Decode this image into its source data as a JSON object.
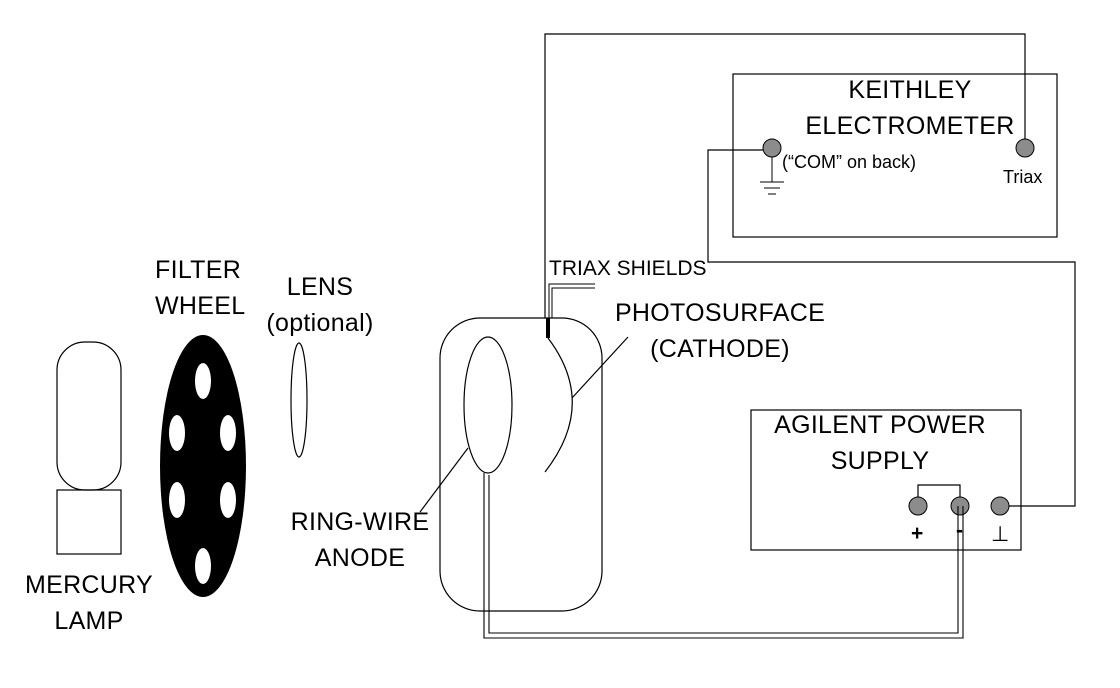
{
  "labels": {
    "mercury_lamp_line1": "MERCURY",
    "mercury_lamp_line2": "LAMP",
    "filter_wheel_line1": "FILTER",
    "filter_wheel_line2": "WHEEL",
    "lens_line1": "LENS",
    "lens_line2": "(optional)",
    "triax_shields": "TRIAX SHIELDS",
    "photosurface_line1": "PHOTOSURFACE",
    "photosurface_line2": "(CATHODE)",
    "ring_wire_line1": "RING-WIRE",
    "ring_wire_line2": "ANODE",
    "keithley_line1": "KEITHLEY",
    "keithley_line2": "ELECTROMETER",
    "com_note": "(“COM” on back)",
    "triax_terminal": "Triax",
    "agilent_line1": "AGILENT POWER",
    "agilent_line2": "SUPPLY",
    "plus_terminal": "+",
    "minus_terminal": "-",
    "ground_terminal": "⊥"
  },
  "colors": {
    "line": "#000000",
    "terminal_fill": "#8c8c8c",
    "wheel_fill": "#000000",
    "background": "#ffffff"
  }
}
